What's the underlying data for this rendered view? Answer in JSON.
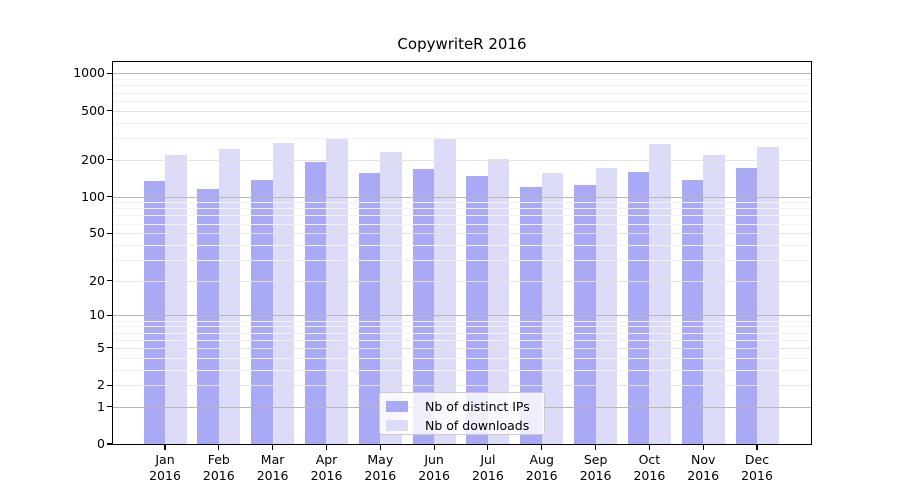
{
  "chart_data": {
    "type": "bar",
    "title": "CopywriteR 2016",
    "categories": [
      "Jan 2016",
      "Feb 2016",
      "Mar 2016",
      "Apr 2016",
      "May 2016",
      "Jun 2016",
      "Jul 2016",
      "Aug 2016",
      "Sep 2016",
      "Oct 2016",
      "Nov 2016",
      "Dec 2016"
    ],
    "series": [
      {
        "name": "Nb of distinct IPs",
        "color": "#a9a9f6",
        "values": [
          133,
          115,
          137,
          190,
          155,
          167,
          148,
          120,
          124,
          158,
          137,
          170
        ]
      },
      {
        "name": "Nb of downloads",
        "color": "#dcdcf8",
        "values": [
          219,
          243,
          275,
          298,
          229,
          298,
          202,
          157,
          170,
          268,
          218,
          255
        ]
      }
    ],
    "xlabel": "",
    "ylabel": "",
    "y_scale": "log10(1+value)",
    "ylim": [
      0,
      1240
    ],
    "y_ticks": [
      0,
      1,
      2,
      5,
      10,
      20,
      50,
      100,
      200,
      500,
      1000
    ],
    "y_minor_gridlines": [
      3,
      4,
      6,
      7,
      8,
      9,
      30,
      40,
      60,
      70,
      80,
      90,
      300,
      400,
      600,
      700,
      800,
      900
    ],
    "y_decade_lines": [
      1,
      10,
      100,
      1000
    ],
    "grid": true,
    "grid_over_bars": true,
    "legend_position": "inside-lower-center"
  },
  "legend": {
    "items": [
      {
        "label": "Nb of distinct IPs",
        "color": "#a9a9f6"
      },
      {
        "label": "Nb of downloads",
        "color": "#dcdcf8"
      }
    ]
  },
  "colors": {
    "distinct_ips_bar": "#a9a9f6",
    "downloads_bar": "#dcdcf8",
    "decade_gridline": "#b6b6b6",
    "major_gridline": "#e3e3e3",
    "minor_gridline": "#f2f2f2",
    "axis": "#000000",
    "background": "#ffffff"
  }
}
